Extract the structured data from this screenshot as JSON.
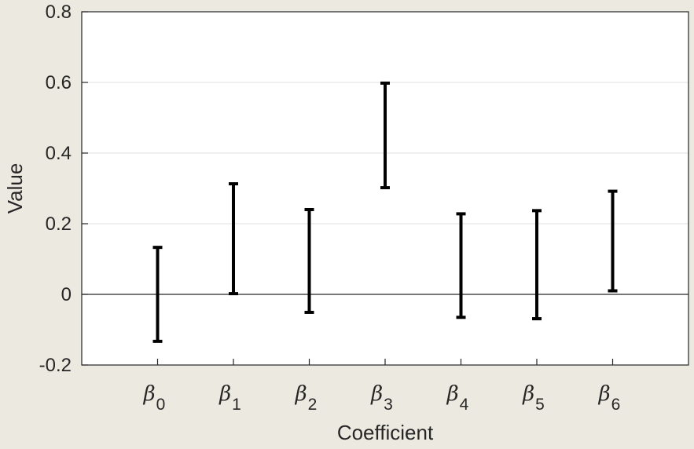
{
  "chart_data": {
    "type": "errorbar",
    "xlabel": "Coefficient",
    "ylabel": "Value",
    "ylim": [
      -0.2,
      0.8
    ],
    "yticks": [
      -0.2,
      0,
      0.2,
      0.4,
      0.6,
      0.8
    ],
    "ytick_labels": [
      "-0.2",
      "0",
      "0.2",
      "0.4",
      "0.6",
      "0.8"
    ],
    "grid": "horizontal",
    "zero_line": true,
    "categories": [
      {
        "symbol": "β",
        "subscript": "0"
      },
      {
        "symbol": "β",
        "subscript": "1"
      },
      {
        "symbol": "β",
        "subscript": "2"
      },
      {
        "symbol": "β",
        "subscript": "3"
      },
      {
        "symbol": "β",
        "subscript": "4"
      },
      {
        "symbol": "β",
        "subscript": "5"
      },
      {
        "symbol": "β",
        "subscript": "6"
      }
    ],
    "intervals": [
      {
        "lower": -0.133,
        "upper": 0.133
      },
      {
        "lower": 0.002,
        "upper": 0.313
      },
      {
        "lower": -0.051,
        "upper": 0.24
      },
      {
        "lower": 0.302,
        "upper": 0.598
      },
      {
        "lower": -0.065,
        "upper": 0.228
      },
      {
        "lower": -0.069,
        "upper": 0.237
      },
      {
        "lower": 0.01,
        "upper": 0.292
      }
    ],
    "colors": {
      "background": "#ECEAE0",
      "plot_area": "#FFFFFF",
      "axis": "#262626",
      "grid": "#DFDFDF",
      "bar": "#000000"
    }
  }
}
